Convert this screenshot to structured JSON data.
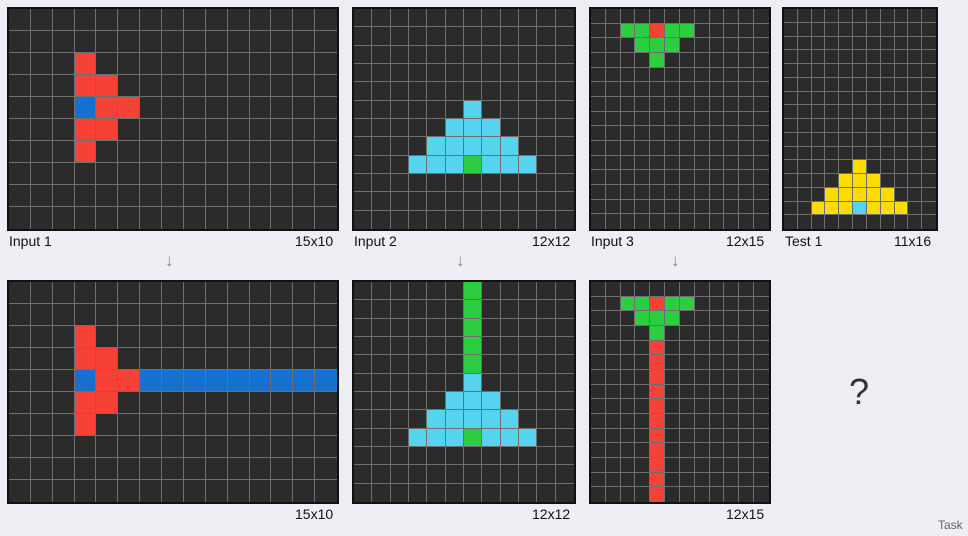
{
  "palette": {
    "0": "#2b2b2b",
    "1": "#1570d0",
    "2": "#f44336",
    "3": "#2ecc40",
    "4": "#ffdc00",
    "8": "#56d4ee"
  },
  "labels": {
    "input1": "Input 1",
    "input1_size": "15x10",
    "input2": "Input 2",
    "input2_size": "12x12",
    "input3": "Input 3",
    "input3_size": "12x15",
    "test1": "Test 1",
    "test1_size": "11x16",
    "output1_size": "15x10",
    "output2_size": "12x12",
    "output3_size": "12x15",
    "question": "?",
    "task": "Task"
  },
  "arrow_glyph": "↓",
  "grids": {
    "in1": {
      "cols": 15,
      "rows": 10,
      "cells": [
        [
          0,
          0,
          0,
          0,
          0,
          0,
          0,
          0,
          0,
          0,
          0,
          0,
          0,
          0,
          0
        ],
        [
          0,
          0,
          0,
          0,
          0,
          0,
          0,
          0,
          0,
          0,
          0,
          0,
          0,
          0,
          0
        ],
        [
          0,
          0,
          0,
          2,
          0,
          0,
          0,
          0,
          0,
          0,
          0,
          0,
          0,
          0,
          0
        ],
        [
          0,
          0,
          0,
          2,
          2,
          0,
          0,
          0,
          0,
          0,
          0,
          0,
          0,
          0,
          0
        ],
        [
          0,
          0,
          0,
          1,
          2,
          2,
          0,
          0,
          0,
          0,
          0,
          0,
          0,
          0,
          0
        ],
        [
          0,
          0,
          0,
          2,
          2,
          0,
          0,
          0,
          0,
          0,
          0,
          0,
          0,
          0,
          0
        ],
        [
          0,
          0,
          0,
          2,
          0,
          0,
          0,
          0,
          0,
          0,
          0,
          0,
          0,
          0,
          0
        ],
        [
          0,
          0,
          0,
          0,
          0,
          0,
          0,
          0,
          0,
          0,
          0,
          0,
          0,
          0,
          0
        ],
        [
          0,
          0,
          0,
          0,
          0,
          0,
          0,
          0,
          0,
          0,
          0,
          0,
          0,
          0,
          0
        ],
        [
          0,
          0,
          0,
          0,
          0,
          0,
          0,
          0,
          0,
          0,
          0,
          0,
          0,
          0,
          0
        ]
      ]
    },
    "out1": {
      "cols": 15,
      "rows": 10,
      "cells": [
        [
          0,
          0,
          0,
          0,
          0,
          0,
          0,
          0,
          0,
          0,
          0,
          0,
          0,
          0,
          0
        ],
        [
          0,
          0,
          0,
          0,
          0,
          0,
          0,
          0,
          0,
          0,
          0,
          0,
          0,
          0,
          0
        ],
        [
          0,
          0,
          0,
          2,
          0,
          0,
          0,
          0,
          0,
          0,
          0,
          0,
          0,
          0,
          0
        ],
        [
          0,
          0,
          0,
          2,
          2,
          0,
          0,
          0,
          0,
          0,
          0,
          0,
          0,
          0,
          0
        ],
        [
          0,
          0,
          0,
          1,
          2,
          2,
          1,
          1,
          1,
          1,
          1,
          1,
          1,
          1,
          1
        ],
        [
          0,
          0,
          0,
          2,
          2,
          0,
          0,
          0,
          0,
          0,
          0,
          0,
          0,
          0,
          0
        ],
        [
          0,
          0,
          0,
          2,
          0,
          0,
          0,
          0,
          0,
          0,
          0,
          0,
          0,
          0,
          0
        ],
        [
          0,
          0,
          0,
          0,
          0,
          0,
          0,
          0,
          0,
          0,
          0,
          0,
          0,
          0,
          0
        ],
        [
          0,
          0,
          0,
          0,
          0,
          0,
          0,
          0,
          0,
          0,
          0,
          0,
          0,
          0,
          0
        ],
        [
          0,
          0,
          0,
          0,
          0,
          0,
          0,
          0,
          0,
          0,
          0,
          0,
          0,
          0,
          0
        ]
      ]
    },
    "in2": {
      "cols": 12,
      "rows": 12,
      "cells": [
        [
          0,
          0,
          0,
          0,
          0,
          0,
          0,
          0,
          0,
          0,
          0,
          0
        ],
        [
          0,
          0,
          0,
          0,
          0,
          0,
          0,
          0,
          0,
          0,
          0,
          0
        ],
        [
          0,
          0,
          0,
          0,
          0,
          0,
          0,
          0,
          0,
          0,
          0,
          0
        ],
        [
          0,
          0,
          0,
          0,
          0,
          0,
          0,
          0,
          0,
          0,
          0,
          0
        ],
        [
          0,
          0,
          0,
          0,
          0,
          0,
          0,
          0,
          0,
          0,
          0,
          0
        ],
        [
          0,
          0,
          0,
          0,
          0,
          0,
          8,
          0,
          0,
          0,
          0,
          0
        ],
        [
          0,
          0,
          0,
          0,
          0,
          8,
          8,
          8,
          0,
          0,
          0,
          0
        ],
        [
          0,
          0,
          0,
          0,
          8,
          8,
          8,
          8,
          8,
          0,
          0,
          0
        ],
        [
          0,
          0,
          0,
          8,
          8,
          8,
          3,
          8,
          8,
          8,
          0,
          0
        ],
        [
          0,
          0,
          0,
          0,
          0,
          0,
          0,
          0,
          0,
          0,
          0,
          0
        ],
        [
          0,
          0,
          0,
          0,
          0,
          0,
          0,
          0,
          0,
          0,
          0,
          0
        ],
        [
          0,
          0,
          0,
          0,
          0,
          0,
          0,
          0,
          0,
          0,
          0,
          0
        ]
      ]
    },
    "out2": {
      "cols": 12,
      "rows": 12,
      "cells": [
        [
          0,
          0,
          0,
          0,
          0,
          0,
          3,
          0,
          0,
          0,
          0,
          0
        ],
        [
          0,
          0,
          0,
          0,
          0,
          0,
          3,
          0,
          0,
          0,
          0,
          0
        ],
        [
          0,
          0,
          0,
          0,
          0,
          0,
          3,
          0,
          0,
          0,
          0,
          0
        ],
        [
          0,
          0,
          0,
          0,
          0,
          0,
          3,
          0,
          0,
          0,
          0,
          0
        ],
        [
          0,
          0,
          0,
          0,
          0,
          0,
          3,
          0,
          0,
          0,
          0,
          0
        ],
        [
          0,
          0,
          0,
          0,
          0,
          0,
          8,
          0,
          0,
          0,
          0,
          0
        ],
        [
          0,
          0,
          0,
          0,
          0,
          8,
          8,
          8,
          0,
          0,
          0,
          0
        ],
        [
          0,
          0,
          0,
          0,
          8,
          8,
          8,
          8,
          8,
          0,
          0,
          0
        ],
        [
          0,
          0,
          0,
          8,
          8,
          8,
          3,
          8,
          8,
          8,
          0,
          0
        ],
        [
          0,
          0,
          0,
          0,
          0,
          0,
          0,
          0,
          0,
          0,
          0,
          0
        ],
        [
          0,
          0,
          0,
          0,
          0,
          0,
          0,
          0,
          0,
          0,
          0,
          0
        ],
        [
          0,
          0,
          0,
          0,
          0,
          0,
          0,
          0,
          0,
          0,
          0,
          0
        ]
      ]
    },
    "in3": {
      "cols": 12,
      "rows": 15,
      "cells": [
        [
          0,
          0,
          0,
          0,
          0,
          0,
          0,
          0,
          0,
          0,
          0,
          0
        ],
        [
          0,
          0,
          3,
          3,
          2,
          3,
          3,
          0,
          0,
          0,
          0,
          0
        ],
        [
          0,
          0,
          0,
          3,
          3,
          3,
          0,
          0,
          0,
          0,
          0,
          0
        ],
        [
          0,
          0,
          0,
          0,
          3,
          0,
          0,
          0,
          0,
          0,
          0,
          0
        ],
        [
          0,
          0,
          0,
          0,
          0,
          0,
          0,
          0,
          0,
          0,
          0,
          0
        ],
        [
          0,
          0,
          0,
          0,
          0,
          0,
          0,
          0,
          0,
          0,
          0,
          0
        ],
        [
          0,
          0,
          0,
          0,
          0,
          0,
          0,
          0,
          0,
          0,
          0,
          0
        ],
        [
          0,
          0,
          0,
          0,
          0,
          0,
          0,
          0,
          0,
          0,
          0,
          0
        ],
        [
          0,
          0,
          0,
          0,
          0,
          0,
          0,
          0,
          0,
          0,
          0,
          0
        ],
        [
          0,
          0,
          0,
          0,
          0,
          0,
          0,
          0,
          0,
          0,
          0,
          0
        ],
        [
          0,
          0,
          0,
          0,
          0,
          0,
          0,
          0,
          0,
          0,
          0,
          0
        ],
        [
          0,
          0,
          0,
          0,
          0,
          0,
          0,
          0,
          0,
          0,
          0,
          0
        ],
        [
          0,
          0,
          0,
          0,
          0,
          0,
          0,
          0,
          0,
          0,
          0,
          0
        ],
        [
          0,
          0,
          0,
          0,
          0,
          0,
          0,
          0,
          0,
          0,
          0,
          0
        ],
        [
          0,
          0,
          0,
          0,
          0,
          0,
          0,
          0,
          0,
          0,
          0,
          0
        ]
      ]
    },
    "out3": {
      "cols": 12,
      "rows": 15,
      "cells": [
        [
          0,
          0,
          0,
          0,
          0,
          0,
          0,
          0,
          0,
          0,
          0,
          0
        ],
        [
          0,
          0,
          3,
          3,
          2,
          3,
          3,
          0,
          0,
          0,
          0,
          0
        ],
        [
          0,
          0,
          0,
          3,
          3,
          3,
          0,
          0,
          0,
          0,
          0,
          0
        ],
        [
          0,
          0,
          0,
          0,
          3,
          0,
          0,
          0,
          0,
          0,
          0,
          0
        ],
        [
          0,
          0,
          0,
          0,
          2,
          0,
          0,
          0,
          0,
          0,
          0,
          0
        ],
        [
          0,
          0,
          0,
          0,
          2,
          0,
          0,
          0,
          0,
          0,
          0,
          0
        ],
        [
          0,
          0,
          0,
          0,
          2,
          0,
          0,
          0,
          0,
          0,
          0,
          0
        ],
        [
          0,
          0,
          0,
          0,
          2,
          0,
          0,
          0,
          0,
          0,
          0,
          0
        ],
        [
          0,
          0,
          0,
          0,
          2,
          0,
          0,
          0,
          0,
          0,
          0,
          0
        ],
        [
          0,
          0,
          0,
          0,
          2,
          0,
          0,
          0,
          0,
          0,
          0,
          0
        ],
        [
          0,
          0,
          0,
          0,
          2,
          0,
          0,
          0,
          0,
          0,
          0,
          0
        ],
        [
          0,
          0,
          0,
          0,
          2,
          0,
          0,
          0,
          0,
          0,
          0,
          0
        ],
        [
          0,
          0,
          0,
          0,
          2,
          0,
          0,
          0,
          0,
          0,
          0,
          0
        ],
        [
          0,
          0,
          0,
          0,
          2,
          0,
          0,
          0,
          0,
          0,
          0,
          0
        ],
        [
          0,
          0,
          0,
          0,
          2,
          0,
          0,
          0,
          0,
          0,
          0,
          0
        ]
      ]
    },
    "test1": {
      "cols": 11,
      "rows": 16,
      "cells": [
        [
          0,
          0,
          0,
          0,
          0,
          0,
          0,
          0,
          0,
          0,
          0
        ],
        [
          0,
          0,
          0,
          0,
          0,
          0,
          0,
          0,
          0,
          0,
          0
        ],
        [
          0,
          0,
          0,
          0,
          0,
          0,
          0,
          0,
          0,
          0,
          0
        ],
        [
          0,
          0,
          0,
          0,
          0,
          0,
          0,
          0,
          0,
          0,
          0
        ],
        [
          0,
          0,
          0,
          0,
          0,
          0,
          0,
          0,
          0,
          0,
          0
        ],
        [
          0,
          0,
          0,
          0,
          0,
          0,
          0,
          0,
          0,
          0,
          0
        ],
        [
          0,
          0,
          0,
          0,
          0,
          0,
          0,
          0,
          0,
          0,
          0
        ],
        [
          0,
          0,
          0,
          0,
          0,
          0,
          0,
          0,
          0,
          0,
          0
        ],
        [
          0,
          0,
          0,
          0,
          0,
          0,
          0,
          0,
          0,
          0,
          0
        ],
        [
          0,
          0,
          0,
          0,
          0,
          0,
          0,
          0,
          0,
          0,
          0
        ],
        [
          0,
          0,
          0,
          0,
          0,
          0,
          0,
          0,
          0,
          0,
          0
        ],
        [
          0,
          0,
          0,
          0,
          0,
          4,
          0,
          0,
          0,
          0,
          0
        ],
        [
          0,
          0,
          0,
          0,
          4,
          4,
          4,
          0,
          0,
          0,
          0
        ],
        [
          0,
          0,
          0,
          4,
          4,
          4,
          4,
          4,
          0,
          0,
          0
        ],
        [
          0,
          0,
          4,
          4,
          4,
          8,
          4,
          4,
          4,
          0,
          0
        ],
        [
          0,
          0,
          0,
          0,
          0,
          0,
          0,
          0,
          0,
          0,
          0
        ]
      ]
    }
  }
}
